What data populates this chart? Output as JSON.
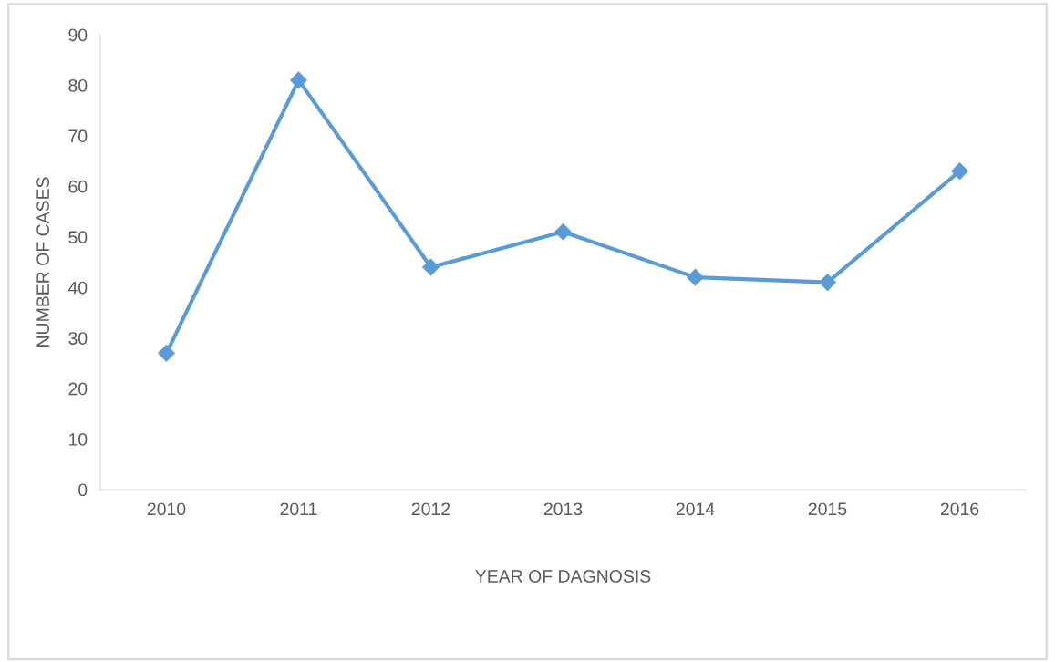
{
  "chart_data": {
    "type": "line",
    "xlabel": "YEAR OF DAGNOSIS",
    "ylabel": "NUMBER OF CASES",
    "categories": [
      "2010",
      "2011",
      "2012",
      "2013",
      "2014",
      "2015",
      "2016"
    ],
    "series": [
      {
        "color": "#5b9bd5",
        "values": [
          27,
          81,
          44,
          51,
          42,
          41,
          63
        ]
      }
    ],
    "ylim": [
      0,
      90
    ],
    "yticks": [
      0,
      10,
      20,
      30,
      40,
      50,
      60,
      70,
      80,
      90
    ],
    "grid": false,
    "marker": "diamond",
    "line_style": "solid"
  }
}
